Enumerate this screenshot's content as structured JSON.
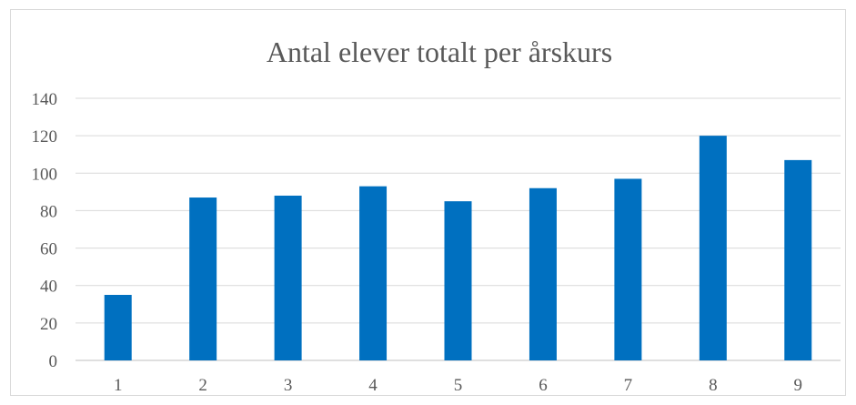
{
  "chart_data": {
    "type": "bar",
    "title": "Antal elever totalt per årskurs",
    "xlabel": "",
    "ylabel": "",
    "categories": [
      "1",
      "2",
      "3",
      "4",
      "5",
      "6",
      "7",
      "8",
      "9"
    ],
    "values": [
      35,
      87,
      88,
      93,
      85,
      92,
      97,
      120,
      107
    ],
    "ylim": [
      0,
      140
    ],
    "yticks": [
      0,
      20,
      40,
      60,
      80,
      100,
      120,
      140
    ],
    "grid": true,
    "legend": "none",
    "bar_color": "#0070c0"
  }
}
